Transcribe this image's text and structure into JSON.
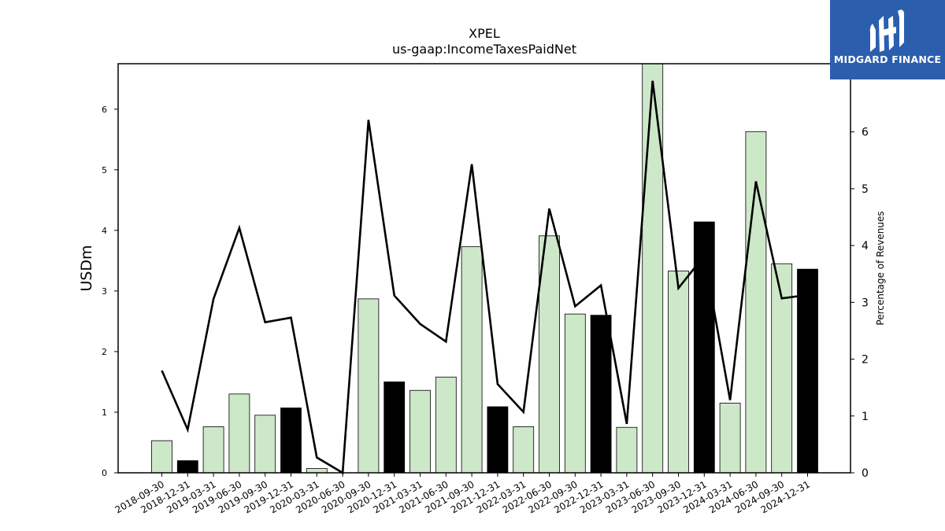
{
  "chart_data": {
    "type": "bar",
    "title": "XPEL",
    "subtitle": "us-gaap:IncomeTaxesPaidNet",
    "ylabel": "USDm",
    "y2label": "Percentage of Revenues",
    "ylim": [
      0,
      6.75
    ],
    "y2lim": [
      0,
      7.2
    ],
    "yticks": [
      0,
      1,
      2,
      3,
      4,
      5,
      6
    ],
    "y2ticks": [
      0,
      1,
      2,
      3,
      4,
      5,
      6,
      7
    ],
    "categories": [
      "2018-09-30",
      "2018-12-31",
      "2019-03-31",
      "2019-06-30",
      "2019-09-30",
      "2019-12-31",
      "2020-03-31",
      "2020-06-30",
      "2020-09-30",
      "2020-12-31",
      "2021-03-31",
      "2021-06-30",
      "2021-09-30",
      "2021-12-31",
      "2022-03-31",
      "2022-06-30",
      "2022-09-30",
      "2022-12-31",
      "2023-03-31",
      "2023-06-30",
      "2023-09-30",
      "2023-12-31",
      "2024-03-31",
      "2024-06-30",
      "2024-09-30",
      "2024-12-31"
    ],
    "series": [
      {
        "type": "bar",
        "values": [
          0.53,
          0.2,
          0.76,
          1.3,
          0.95,
          1.07,
          0.07,
          0.0,
          2.87,
          1.5,
          1.36,
          1.58,
          3.73,
          1.09,
          0.76,
          3.91,
          2.62,
          2.6,
          0.75,
          6.8,
          3.33,
          4.14,
          1.15,
          5.63,
          3.45,
          3.36
        ],
        "colors": [
          "#cde8c8",
          "#000000",
          "#cde8c8",
          "#cde8c8",
          "#cde8c8",
          "#000000",
          "#cde8c8",
          "#cde8c8",
          "#cde8c8",
          "#000000",
          "#cde8c8",
          "#cde8c8",
          "#cde8c8",
          "#000000",
          "#cde8c8",
          "#cde8c8",
          "#cde8c8",
          "#000000",
          "#cde8c8",
          "#cde8c8",
          "#cde8c8",
          "#000000",
          "#cde8c8",
          "#cde8c8",
          "#cde8c8",
          "#000000"
        ]
      },
      {
        "type": "line",
        "axis": "right",
        "color": "#000000",
        "values": [
          1.8,
          0.76,
          3.06,
          4.31,
          2.65,
          2.73,
          0.27,
          0.0,
          6.21,
          3.12,
          2.62,
          2.31,
          5.43,
          1.56,
          1.07,
          4.65,
          2.93,
          3.3,
          0.86,
          6.9,
          3.25,
          3.82,
          1.28,
          5.13,
          3.07,
          3.13
        ]
      }
    ],
    "grid": false,
    "legend": "none"
  },
  "logo": {
    "text": "MIDGARD FINANCE"
  },
  "colors": {
    "bar_light": "#cde8c8",
    "bar_dark": "#000000",
    "logo_bg": "#2b5fae"
  }
}
